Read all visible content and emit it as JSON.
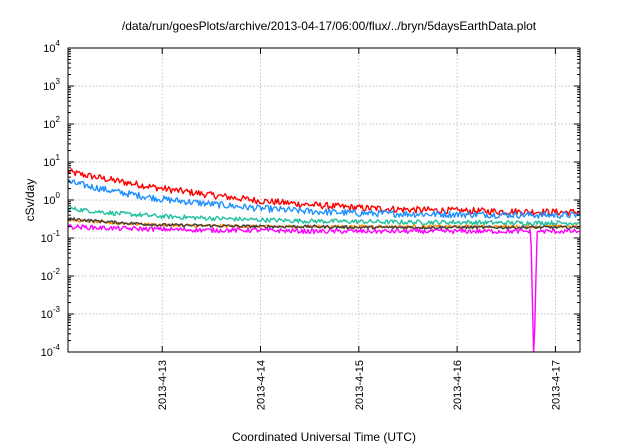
{
  "chart_data": {
    "type": "line",
    "title": "/data/run/goesPlots/archive/2013-04-17/06:00/flux/../bryn/5daysEarthData.plot",
    "xlabel": "Coordinated Universal Time (UTC)",
    "ylabel": "cSv/day",
    "y_scale": "log",
    "ylim": [
      0.0001,
      10000
    ],
    "y_ticks": [
      {
        "base": "10",
        "exp": "-4"
      },
      {
        "base": "10",
        "exp": "-3"
      },
      {
        "base": "10",
        "exp": "-2"
      },
      {
        "base": "10",
        "exp": "-1"
      },
      {
        "base": "10",
        "exp": "0"
      },
      {
        "base": "10",
        "exp": "1"
      },
      {
        "base": "10",
        "exp": "2"
      },
      {
        "base": "10",
        "exp": "3"
      },
      {
        "base": "10",
        "exp": "4"
      }
    ],
    "xlim": [
      "2013-04-12 01:00",
      "2013-04-17 06:00"
    ],
    "x_ticks": [
      "2013-4-13",
      "2013-4-14",
      "2013-4-15",
      "2013-4-16",
      "2013-4-17"
    ],
    "grid": true,
    "series": [
      {
        "color": "#ff0000",
        "noise": 0.09,
        "x": [
          "2013-04-12 01:00",
          "2013-04-12 12:00",
          "2013-04-13 00:00",
          "2013-04-13 12:00",
          "2013-04-14 00:00",
          "2013-04-14 12:00",
          "2013-04-15 00:00",
          "2013-04-15 12:00",
          "2013-04-16 00:00",
          "2013-04-16 12:00",
          "2013-04-17 00:00",
          "2013-04-17 06:00"
        ],
        "y": [
          5.5,
          3.3,
          2.0,
          1.35,
          0.95,
          0.75,
          0.62,
          0.56,
          0.52,
          0.5,
          0.48,
          0.48
        ]
      },
      {
        "color": "#1e90ff",
        "noise": 0.09,
        "x": [
          "2013-04-12 01:00",
          "2013-04-12 12:00",
          "2013-04-13 00:00",
          "2013-04-13 12:00",
          "2013-04-14 00:00",
          "2013-04-14 12:00",
          "2013-04-15 00:00",
          "2013-04-15 12:00",
          "2013-04-16 00:00",
          "2013-04-16 12:00",
          "2013-04-17 00:00",
          "2013-04-17 06:00"
        ],
        "y": [
          3.0,
          1.7,
          1.05,
          0.78,
          0.6,
          0.5,
          0.45,
          0.43,
          0.42,
          0.41,
          0.4,
          0.4
        ]
      },
      {
        "color": "#20c0a0",
        "noise": 0.06,
        "x": [
          "2013-04-12 01:00",
          "2013-04-12 12:00",
          "2013-04-13 00:00",
          "2013-04-13 12:00",
          "2013-04-14 00:00",
          "2013-04-14 12:00",
          "2013-04-15 00:00",
          "2013-04-15 12:00",
          "2013-04-16 00:00",
          "2013-04-16 12:00",
          "2013-04-17 00:00",
          "2013-04-17 06:00"
        ],
        "y": [
          0.6,
          0.45,
          0.37,
          0.33,
          0.3,
          0.28,
          0.27,
          0.26,
          0.26,
          0.25,
          0.25,
          0.25
        ]
      },
      {
        "color": "#ff8c00",
        "noise": 0.04,
        "x": [
          "2013-04-12 01:00",
          "2013-04-12 12:00",
          "2013-04-13 00:00",
          "2013-04-13 12:00",
          "2013-04-14 00:00",
          "2013-04-14 12:00",
          "2013-04-15 00:00",
          "2013-04-15 12:00",
          "2013-04-16 00:00",
          "2013-04-16 12:00",
          "2013-04-17 00:00",
          "2013-04-17 06:00"
        ],
        "y": [
          0.3,
          0.25,
          0.22,
          0.21,
          0.2,
          0.2,
          0.2,
          0.2,
          0.2,
          0.2,
          0.2,
          0.2
        ]
      },
      {
        "color": "#404040",
        "noise": 0.04,
        "x": [
          "2013-04-12 01:00",
          "2013-04-12 12:00",
          "2013-04-13 00:00",
          "2013-04-13 12:00",
          "2013-04-14 00:00",
          "2013-04-14 12:00",
          "2013-04-15 00:00",
          "2013-04-15 12:00",
          "2013-04-16 00:00",
          "2013-04-16 12:00",
          "2013-04-17 00:00",
          "2013-04-17 06:00"
        ],
        "y": [
          0.32,
          0.26,
          0.22,
          0.21,
          0.2,
          0.2,
          0.19,
          0.19,
          0.19,
          0.19,
          0.19,
          0.19
        ]
      },
      {
        "color": "#ff00ff",
        "noise": 0.06,
        "x": [
          "2013-04-12 01:00",
          "2013-04-12 12:00",
          "2013-04-13 00:00",
          "2013-04-13 12:00",
          "2013-04-14 00:00",
          "2013-04-14 12:00",
          "2013-04-15 00:00",
          "2013-04-15 12:00",
          "2013-04-16 00:00",
          "2013-04-16 12:00",
          "2013-04-16 18:00",
          "2013-04-16 18:40",
          "2013-04-16 18:50",
          "2013-04-16 19:30",
          "2013-04-17 00:00",
          "2013-04-17 06:00"
        ],
        "y": [
          0.2,
          0.18,
          0.17,
          0.16,
          0.16,
          0.15,
          0.15,
          0.15,
          0.15,
          0.15,
          0.15,
          0.0001,
          0.0001,
          0.15,
          0.15,
          0.15
        ]
      }
    ]
  }
}
